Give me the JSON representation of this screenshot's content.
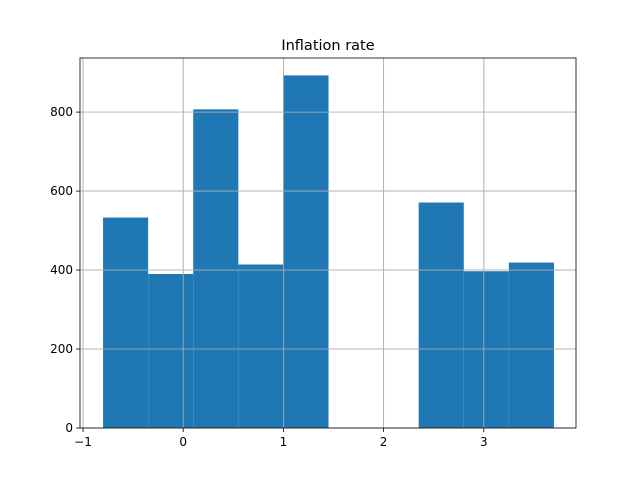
{
  "chart_data": {
    "type": "bar",
    "subtype": "histogram",
    "title": "Inflation rate",
    "xlabel": "",
    "ylabel": "",
    "xlim": [
      -1.03,
      3.92
    ],
    "ylim": [
      0,
      937
    ],
    "x_ticks": [
      -1,
      0,
      1,
      2,
      3
    ],
    "y_ticks": [
      0,
      200,
      400,
      600,
      800
    ],
    "grid": true,
    "bar_color": "#1f77b4",
    "bin_edges": [
      -0.8,
      -0.35,
      0.1,
      0.55,
      1.0,
      1.45,
      1.9,
      2.35,
      2.8,
      3.25,
      3.7
    ],
    "values": [
      533,
      390,
      807,
      414,
      893,
      0,
      0,
      571,
      397,
      419
    ]
  }
}
